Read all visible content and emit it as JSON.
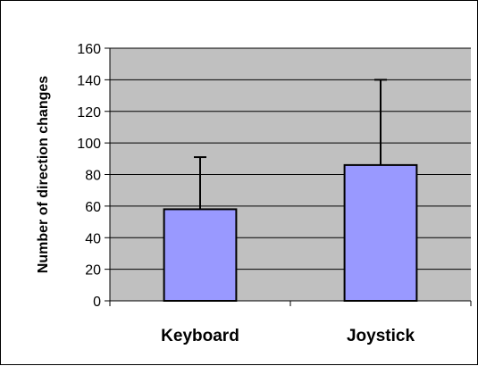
{
  "chart_data": {
    "type": "bar",
    "categories": [
      "Keyboard",
      "Joystick"
    ],
    "values": [
      58,
      86
    ],
    "error_upper": [
      91,
      140
    ],
    "title": "",
    "xlabel": "",
    "ylabel": "Number of direction changes",
    "ylim": [
      0,
      160
    ],
    "yticks": [
      0,
      20,
      40,
      60,
      80,
      100,
      120,
      140,
      160
    ],
    "grid": true,
    "legend": "none",
    "colors": {
      "plot_background": "#c0c0c0",
      "bar_fill": "#9999ff",
      "bar_stroke": "#000000",
      "gridline": "#000000"
    }
  }
}
